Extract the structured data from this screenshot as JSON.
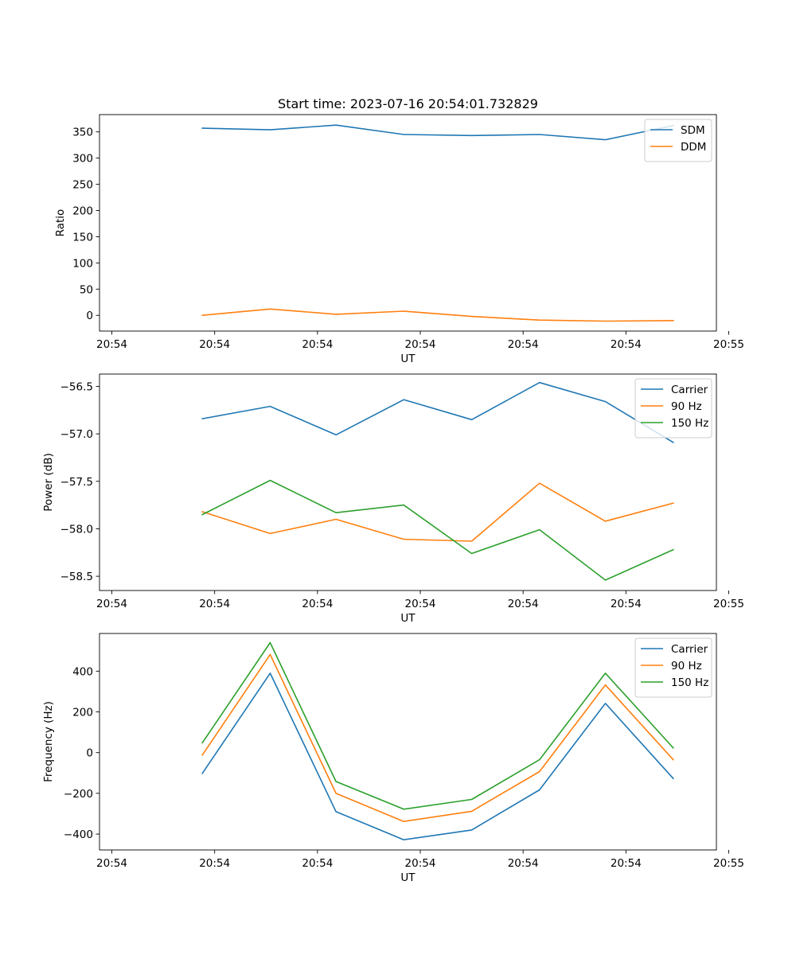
{
  "chart_data": [
    {
      "type": "line",
      "title": "Start time: 2023-07-16 20:54:01.732829",
      "xlabel": "UT",
      "ylabel": "Ratio",
      "xlim": [
        0,
        30
      ],
      "ylim": [
        -30,
        383
      ],
      "x": [
        5,
        8.3,
        11.5,
        14.8,
        18.1,
        21.4,
        24.6,
        27.9
      ],
      "x_ticks": [
        0.6,
        5.6,
        10.6,
        15.6,
        20.6,
        25.6,
        30.6
      ],
      "x_tick_labels": [
        "20:54",
        "20:54",
        "20:54",
        "20:54",
        "20:54",
        "20:54",
        "20:55"
      ],
      "y_ticks": [
        0,
        50,
        100,
        150,
        200,
        250,
        300,
        350
      ],
      "y_tick_labels": [
        "0",
        "50",
        "100",
        "150",
        "200",
        "250",
        "300",
        "350"
      ],
      "legend_position": "top-right",
      "series": [
        {
          "name": "SDM",
          "color": "#1f77b4",
          "values": [
            357,
            354,
            363,
            345,
            343,
            345,
            335,
            362
          ]
        },
        {
          "name": "DDM",
          "color": "#ff7f0e",
          "values": [
            0,
            12,
            2,
            8,
            -2,
            -9,
            -11,
            -10
          ]
        }
      ]
    },
    {
      "type": "line",
      "title": "",
      "xlabel": "UT",
      "ylabel": "Power (dB)",
      "xlim": [
        0,
        30
      ],
      "ylim": [
        -58.65,
        -56.37
      ],
      "x": [
        5,
        8.3,
        11.5,
        14.8,
        18.1,
        21.4,
        24.6,
        27.9
      ],
      "x_ticks": [
        0.6,
        5.6,
        10.6,
        15.6,
        20.6,
        25.6,
        30.6
      ],
      "x_tick_labels": [
        "20:54",
        "20:54",
        "20:54",
        "20:54",
        "20:54",
        "20:54",
        "20:55"
      ],
      "y_ticks": [
        -58.5,
        -58.0,
        -57.5,
        -57.0,
        -56.5
      ],
      "y_tick_labels": [
        "−58.5",
        "−58.0",
        "−57.5",
        "−57.0",
        "−56.5"
      ],
      "legend_position": "top-right",
      "series": [
        {
          "name": "Carrier",
          "color": "#1f77b4",
          "values": [
            -56.84,
            -56.71,
            -57.01,
            -56.64,
            -56.85,
            -56.46,
            -56.66,
            -57.09
          ]
        },
        {
          "name": "90 Hz",
          "color": "#ff7f0e",
          "values": [
            -57.82,
            -58.05,
            -57.9,
            -58.11,
            -58.13,
            -57.52,
            -57.92,
            -57.73
          ]
        },
        {
          "name": "150 Hz",
          "color": "#2ca02c",
          "values": [
            -57.85,
            -57.49,
            -57.83,
            -57.75,
            -58.26,
            -58.01,
            -58.54,
            -58.22
          ]
        }
      ]
    },
    {
      "type": "line",
      "title": "",
      "xlabel": "UT",
      "ylabel": "Frequency (Hz)",
      "xlim": [
        0,
        30
      ],
      "ylim": [
        -478,
        585
      ],
      "x": [
        5,
        8.3,
        11.5,
        14.8,
        18.1,
        21.4,
        24.6,
        27.9
      ],
      "x_ticks": [
        0.6,
        5.6,
        10.6,
        15.6,
        20.6,
        25.6,
        30.6
      ],
      "x_tick_labels": [
        "20:54",
        "20:54",
        "20:54",
        "20:54",
        "20:54",
        "20:54",
        "20:55"
      ],
      "y_ticks": [
        -400,
        -200,
        0,
        200,
        400
      ],
      "y_tick_labels": [
        "−400",
        "−200",
        "0",
        "200",
        "400"
      ],
      "legend_position": "top-right",
      "series": [
        {
          "name": "Carrier",
          "color": "#1f77b4",
          "values": [
            -102,
            390,
            -290,
            -428,
            -380,
            -183,
            242,
            -127
          ]
        },
        {
          "name": "90 Hz",
          "color": "#ff7f0e",
          "values": [
            -12,
            482,
            -200,
            -338,
            -288,
            -93,
            332,
            -35
          ]
        },
        {
          "name": "150 Hz",
          "color": "#2ca02c",
          "values": [
            48,
            540,
            -142,
            -278,
            -230,
            -35,
            390,
            23
          ]
        }
      ]
    }
  ]
}
